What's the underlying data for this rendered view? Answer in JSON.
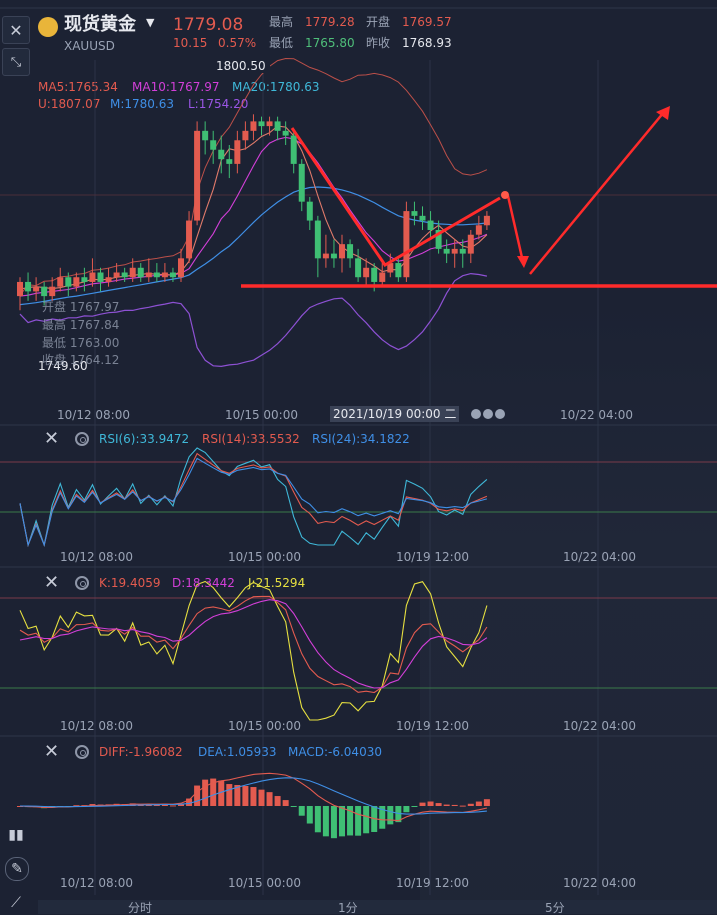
{
  "header": {
    "name": "现货黄金",
    "code": "XAUUSD",
    "price": "1779.08",
    "change": "10.15",
    "change_pct": "0.57%",
    "high_label": "最高",
    "high": "1779.28",
    "open_label": "开盘",
    "open": "1769.57",
    "low_label": "最低",
    "low": "1765.80",
    "prev_close_label": "昨收",
    "prev_close": "1768.93"
  },
  "main_panel": {
    "ma5": "MA5:1765.34",
    "ma10": "MA10:1767.97",
    "ma20": "MA20:1780.63",
    "boll_u": "U:1807.07",
    "boll_m": "M:1780.63",
    "boll_l": "L:1754.20",
    "max_label": "1800.50",
    "min_label": "1749.60",
    "tooltip_open": "开盘 1767.97",
    "tooltip_high": "最高 1767.84",
    "tooltip_low": "最低 1763.00",
    "tooltip_close": "收盘 1764.12",
    "crosshair_date": "2021/10/19 00:00 二"
  },
  "time_axis": [
    "10/12 08:00",
    "10/15 00:00",
    "10/19 12:00",
    "10/22 04:00"
  ],
  "time_axis_main": [
    "10/12 08:00",
    "10/15 00:00",
    "10/22 04:00"
  ],
  "rsi_panel": {
    "rsi6": "RSI(6):33.9472",
    "rsi14": "RSI(14):33.5532",
    "rsi24": "RSI(24):34.1822"
  },
  "kdj_panel": {
    "k": "K:19.4059",
    "d": "D:18.3442",
    "j": "J:21.5294"
  },
  "macd_panel": {
    "diff": "DIFF:-1.96082",
    "dea": "DEA:1.05933",
    "macd": "MACD:-6.04030"
  },
  "bottom_tabs": [
    "分时",
    "1分",
    "5分"
  ],
  "colors": {
    "up": "#e35b4f",
    "down": "#3fbf74",
    "ma5": "#e8e6e0",
    "ma10": "#d23fd8",
    "ma20": "#3fb8d8",
    "boll_u": "#e35b4f",
    "boll_m": "#3f8fe6",
    "boll_l": "#9a56e6",
    "annotation": "#ff2b2b"
  },
  "chart_data": {
    "type": "candlestick",
    "title": "现货黄金 XAUUSD",
    "ylim": [
      1740,
      1812
    ],
    "candles": [
      {
        "o": 1762,
        "c": 1765,
        "h": 1766,
        "l": 1759
      },
      {
        "o": 1765,
        "c": 1763,
        "h": 1767,
        "l": 1761
      },
      {
        "o": 1763,
        "c": 1764,
        "h": 1766,
        "l": 1761
      },
      {
        "o": 1764,
        "c": 1762,
        "h": 1765,
        "l": 1760
      },
      {
        "o": 1762,
        "c": 1764,
        "h": 1766,
        "l": 1761
      },
      {
        "o": 1764,
        "c": 1766,
        "h": 1768,
        "l": 1763
      },
      {
        "o": 1766,
        "c": 1764,
        "h": 1767,
        "l": 1762
      },
      {
        "o": 1764,
        "c": 1766,
        "h": 1767,
        "l": 1763
      },
      {
        "o": 1766,
        "c": 1765,
        "h": 1768,
        "l": 1763
      },
      {
        "o": 1765,
        "c": 1767,
        "h": 1770,
        "l": 1764
      },
      {
        "o": 1767,
        "c": 1765,
        "h": 1768,
        "l": 1763
      },
      {
        "o": 1765,
        "c": 1766,
        "h": 1768,
        "l": 1764
      },
      {
        "o": 1766,
        "c": 1767,
        "h": 1769,
        "l": 1765
      },
      {
        "o": 1767,
        "c": 1766,
        "h": 1768,
        "l": 1765
      },
      {
        "o": 1766,
        "c": 1768,
        "h": 1770,
        "l": 1765
      },
      {
        "o": 1768,
        "c": 1766,
        "h": 1769,
        "l": 1765
      },
      {
        "o": 1766,
        "c": 1767,
        "h": 1770,
        "l": 1765
      },
      {
        "o": 1767,
        "c": 1766,
        "h": 1769,
        "l": 1765
      },
      {
        "o": 1766,
        "c": 1767,
        "h": 1769,
        "l": 1765
      },
      {
        "o": 1767,
        "c": 1766,
        "h": 1768,
        "l": 1765
      },
      {
        "o": 1766,
        "c": 1770,
        "h": 1772,
        "l": 1765
      },
      {
        "o": 1770,
        "c": 1778,
        "h": 1780,
        "l": 1769
      },
      {
        "o": 1778,
        "c": 1797,
        "h": 1799,
        "l": 1777
      },
      {
        "o": 1797,
        "c": 1795,
        "h": 1799,
        "l": 1792
      },
      {
        "o": 1795,
        "c": 1793,
        "h": 1797,
        "l": 1790
      },
      {
        "o": 1793,
        "c": 1791,
        "h": 1796,
        "l": 1788
      },
      {
        "o": 1791,
        "c": 1790,
        "h": 1794,
        "l": 1787
      },
      {
        "o": 1790,
        "c": 1795,
        "h": 1797,
        "l": 1788
      },
      {
        "o": 1795,
        "c": 1797,
        "h": 1799,
        "l": 1793
      },
      {
        "o": 1797,
        "c": 1799,
        "h": 1800.5,
        "l": 1795
      },
      {
        "o": 1799,
        "c": 1798,
        "h": 1800,
        "l": 1796
      },
      {
        "o": 1798,
        "c": 1799,
        "h": 1800,
        "l": 1796
      },
      {
        "o": 1799,
        "c": 1797,
        "h": 1800,
        "l": 1795
      },
      {
        "o": 1797,
        "c": 1796,
        "h": 1799,
        "l": 1794
      },
      {
        "o": 1796,
        "c": 1790,
        "h": 1797,
        "l": 1788
      },
      {
        "o": 1790,
        "c": 1782,
        "h": 1791,
        "l": 1780
      },
      {
        "o": 1782,
        "c": 1778,
        "h": 1783,
        "l": 1776
      },
      {
        "o": 1778,
        "c": 1770,
        "h": 1779,
        "l": 1766
      },
      {
        "o": 1770,
        "c": 1771,
        "h": 1775,
        "l": 1768
      },
      {
        "o": 1771,
        "c": 1770,
        "h": 1774,
        "l": 1768
      },
      {
        "o": 1770,
        "c": 1773,
        "h": 1775,
        "l": 1767
      },
      {
        "o": 1773,
        "c": 1770,
        "h": 1774,
        "l": 1768
      },
      {
        "o": 1770,
        "c": 1766,
        "h": 1772,
        "l": 1765
      },
      {
        "o": 1766,
        "c": 1768,
        "h": 1770,
        "l": 1764
      },
      {
        "o": 1768,
        "c": 1765,
        "h": 1769,
        "l": 1763
      },
      {
        "o": 1765,
        "c": 1767,
        "h": 1769,
        "l": 1764
      },
      {
        "o": 1767,
        "c": 1769,
        "h": 1771,
        "l": 1766
      },
      {
        "o": 1769,
        "c": 1766,
        "h": 1770,
        "l": 1765
      },
      {
        "o": 1766,
        "c": 1780,
        "h": 1782,
        "l": 1765
      },
      {
        "o": 1780,
        "c": 1779,
        "h": 1782,
        "l": 1777
      },
      {
        "o": 1779,
        "c": 1778,
        "h": 1781,
        "l": 1776
      },
      {
        "o": 1778,
        "c": 1776,
        "h": 1780,
        "l": 1774
      },
      {
        "o": 1776,
        "c": 1772,
        "h": 1778,
        "l": 1771
      },
      {
        "o": 1772,
        "c": 1771,
        "h": 1774,
        "l": 1769
      },
      {
        "o": 1771,
        "c": 1772,
        "h": 1774,
        "l": 1768
      },
      {
        "o": 1772,
        "c": 1771,
        "h": 1774,
        "l": 1768
      },
      {
        "o": 1771,
        "c": 1775,
        "h": 1776,
        "l": 1769
      },
      {
        "o": 1775,
        "c": 1777,
        "h": 1779,
        "l": 1774
      },
      {
        "o": 1777,
        "c": 1779,
        "h": 1780,
        "l": 1776
      }
    ],
    "ma5": [
      1763.5,
      1763.8,
      1764,
      1763.8,
      1763.6,
      1763.8,
      1764.2,
      1764.6,
      1765,
      1765.6,
      1765.4,
      1765.6,
      1766,
      1766.2,
      1766.4,
      1766.6,
      1766.8,
      1766.6,
      1766.6,
      1766.4,
      1767.2,
      1769.4,
      1774.6,
      1779.8,
      1784.6,
      1790.8,
      1793.2,
      1792.8,
      1793.2,
      1794.4,
      1795.8,
      1796.6,
      1798,
      1797.8,
      1796,
      1792.8,
      1788.6,
      1783.2,
      1778.2,
      1774.2,
      1772.4,
      1771.2,
      1770.4,
      1769.4,
      1768.4,
      1767.2,
      1767.6,
      1767.6,
      1769.6,
      1772.2,
      1774.2,
      1775.8,
      1777,
      1775.4,
      1774,
      1772.6,
      1772.2,
      1773.4,
      1775
    ],
    "ma10": [
      1762,
      1762.2,
      1762.6,
      1762.8,
      1763,
      1763.2,
      1763.4,
      1763.8,
      1764.2,
      1764.6,
      1764.8,
      1765,
      1765.3,
      1765.6,
      1765.8,
      1766,
      1766.2,
      1766.4,
      1766.5,
      1766.5,
      1766.8,
      1767.8,
      1770.4,
      1772.8,
      1775.2,
      1778.4,
      1780.2,
      1783.2,
      1786.4,
      1789.6,
      1792.6,
      1794.4,
      1795.2,
      1795.6,
      1795.3,
      1794.2,
      1792.4,
      1790.2,
      1787.6,
      1785,
      1782.8,
      1780.2,
      1777.8,
      1775.4,
      1773.6,
      1771.6,
      1770.3,
      1769.4,
      1769.7,
      1770.4,
      1771.1,
      1772,
      1772.4,
      1772.8,
      1773.2,
      1773.4,
      1773.8,
      1774.4,
      1775.1
    ],
    "ma20": [
      1760.2,
      1760.4,
      1760.6,
      1760.9,
      1761.2,
      1761.5,
      1761.8,
      1762,
      1762.3,
      1762.6,
      1762.9,
      1763.2,
      1763.5,
      1763.8,
      1764.1,
      1764.4,
      1764.7,
      1765,
      1765.3,
      1765.6,
      1765.9,
      1766.5,
      1767.7,
      1768.8,
      1770,
      1771.4,
      1772.6,
      1774.2,
      1775.9,
      1777.6,
      1779.2,
      1780.6,
      1781.9,
      1783,
      1784,
      1784.6,
      1785,
      1785.1,
      1785,
      1784.8,
      1784.5,
      1784,
      1783.4,
      1782.6,
      1781.8,
      1780.8,
      1779.9,
      1779,
      1778.5,
      1778.1,
      1777.8,
      1777.5,
      1777.3,
      1777.2,
      1777.1,
      1777.1,
      1777.2,
      1777.3,
      1777.5
    ]
  }
}
